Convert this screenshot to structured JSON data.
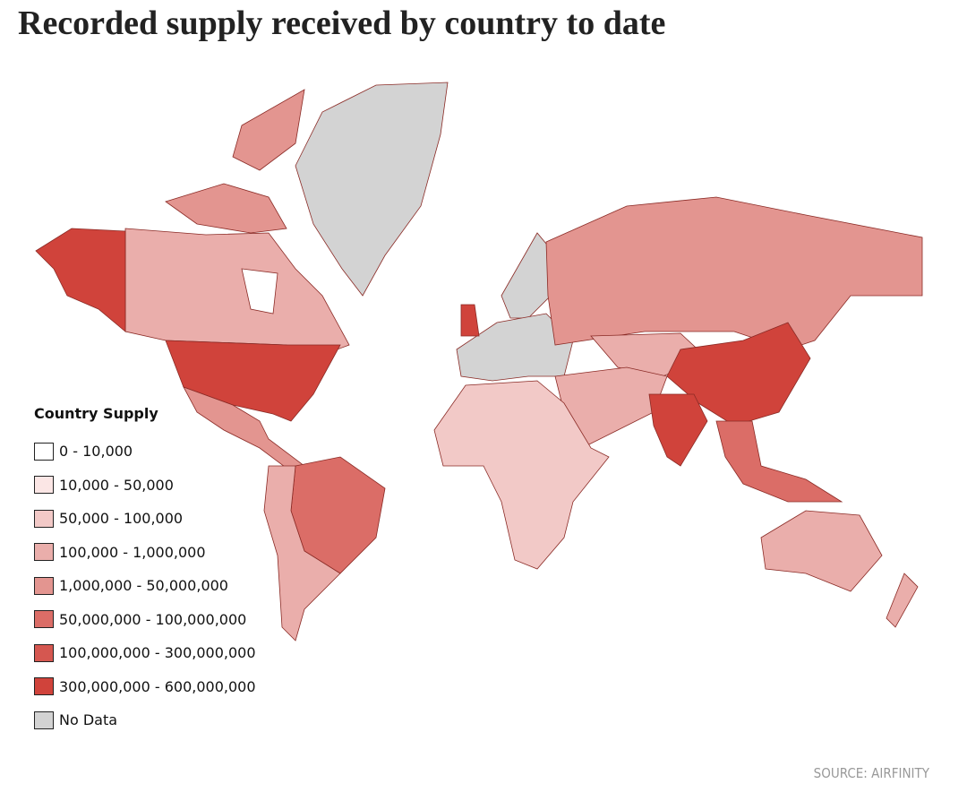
{
  "title": "Recorded supply received by country to date",
  "legend": {
    "title": "Country Supply",
    "items": [
      {
        "label": "0 - 10,000",
        "color": "#ffffff"
      },
      {
        "label": "10,000 - 50,000",
        "color": "#fbe6e5"
      },
      {
        "label": "50,000 - 100,000",
        "color": "#f2c9c7"
      },
      {
        "label": "100,000 - 1,000,000",
        "color": "#eaaeab"
      },
      {
        "label": "1,000,000 - 50,000,000",
        "color": "#e39590"
      },
      {
        "label": "50,000,000 - 100,000,000",
        "color": "#db6d67"
      },
      {
        "label": "100,000,000 - 300,000,000",
        "color": "#d55750"
      },
      {
        "label": "300,000,000 - 600,000,000",
        "color": "#d0433b"
      },
      {
        "label": "No Data",
        "color": "#d3d3d3"
      }
    ]
  },
  "source": "SOURCE: AIRFINITY"
}
